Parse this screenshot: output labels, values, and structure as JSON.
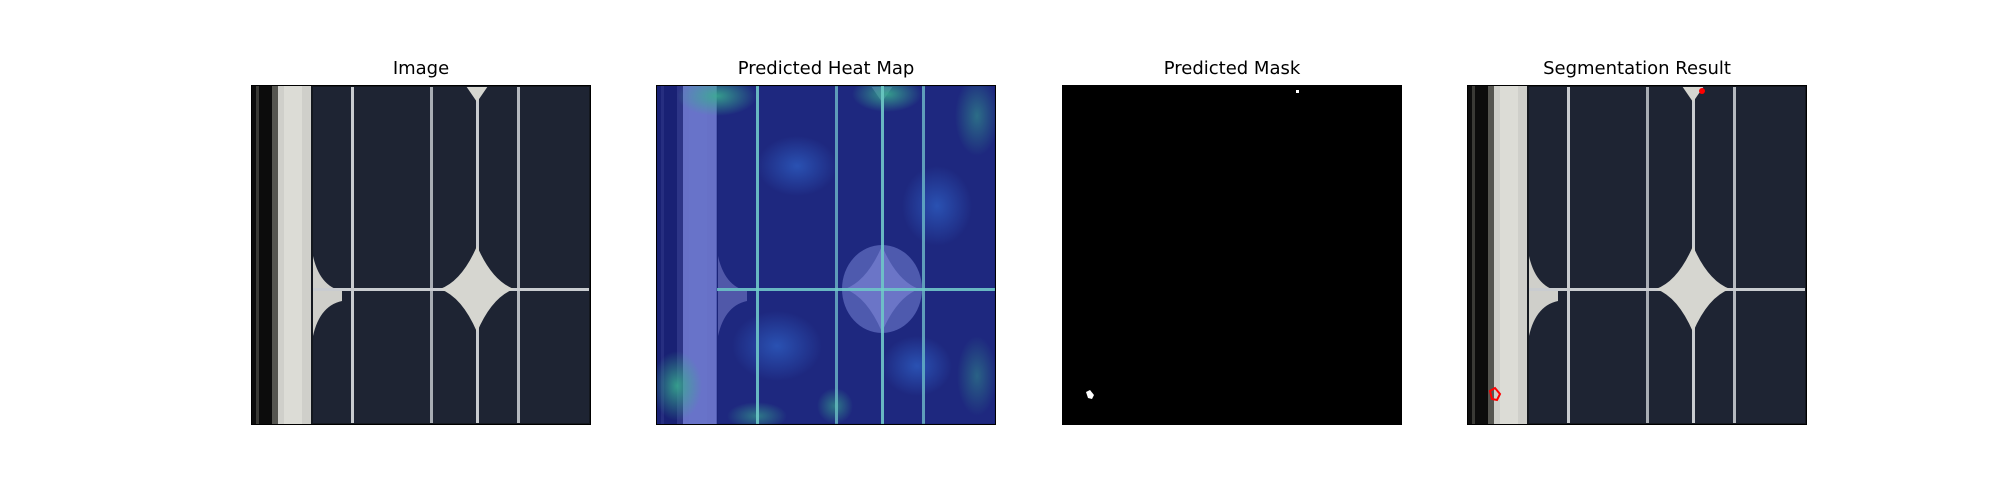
{
  "panels": [
    {
      "title": "Image",
      "icon": "solar-cell-photo"
    },
    {
      "title": "Predicted Heat Map",
      "icon": "heatmap-overlay"
    },
    {
      "title": "Predicted Mask",
      "icon": "binary-mask"
    },
    {
      "title": "Segmentation Result",
      "icon": "segmentation-overlay"
    }
  ],
  "colors": {
    "cell_dark": "#1b2030",
    "finger_line": "#c9ccd0",
    "pad": "#d6d6d0",
    "heat_base": "#1e2a9c",
    "heat_hot": "#2e8f86",
    "mask_fg": "#ffffff",
    "mask_bg": "#000000",
    "defect": "#ff0000"
  }
}
